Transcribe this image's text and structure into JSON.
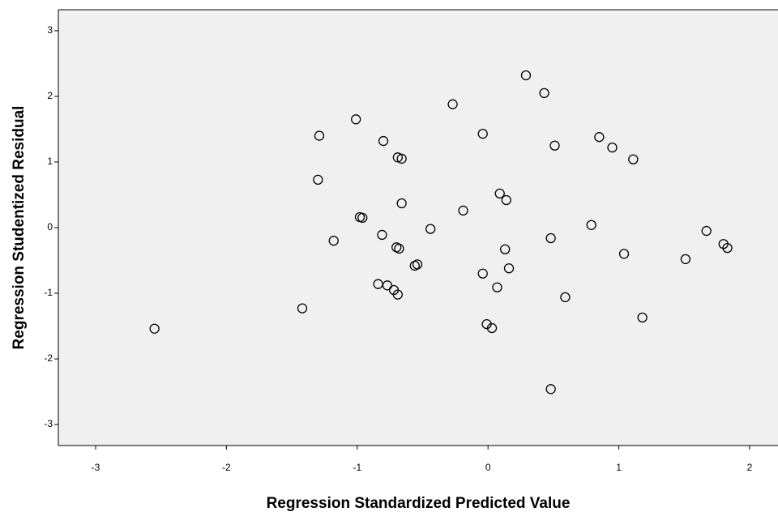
{
  "chart_data": {
    "type": "scatter",
    "xlabel": "Regression Standardized Predicted Value",
    "ylabel": "Regression Studentized Residual",
    "x": [
      -2.55,
      -1.42,
      -1.29,
      -1.3,
      -1.18,
      -1.01,
      -0.98,
      -0.96,
      -0.8,
      -0.81,
      -0.84,
      -0.77,
      -0.72,
      -0.69,
      -0.69,
      -0.66,
      -0.66,
      -0.7,
      -0.68,
      -0.56,
      -0.54,
      -0.44,
      -0.27,
      -0.19,
      -0.04,
      -0.04,
      -0.01,
      0.03,
      0.07,
      0.09,
      0.14,
      0.13,
      0.16,
      0.29,
      0.43,
      0.51,
      0.48,
      0.48,
      0.59,
      0.79,
      0.85,
      0.95,
      1.04,
      1.11,
      1.18,
      1.51,
      1.67,
      1.8,
      1.83
    ],
    "values": [
      -1.54,
      -1.23,
      1.4,
      0.73,
      -0.2,
      1.65,
      0.16,
      0.15,
      1.32,
      -0.11,
      -0.86,
      -0.88,
      -0.95,
      -1.02,
      1.07,
      1.05,
      0.37,
      -0.3,
      -0.32,
      -0.58,
      -0.56,
      -0.02,
      1.88,
      0.26,
      1.43,
      -0.7,
      -1.47,
      -1.53,
      -0.91,
      0.52,
      0.42,
      -0.33,
      -0.62,
      2.32,
      2.05,
      1.25,
      -0.16,
      -2.46,
      -1.06,
      0.04,
      1.38,
      1.22,
      -0.4,
      1.04,
      -1.37,
      -0.48,
      -0.05,
      -0.25,
      -0.31
    ],
    "color": "#000000",
    "xlim": [
      -3.285,
      2.217
    ],
    "xticks": [
      -3,
      -2,
      -1,
      0,
      1,
      2
    ],
    "ylim": [
      -3.32,
      3.32
    ],
    "yticks": [
      -3,
      -2,
      -1,
      0,
      1,
      2,
      3
    ]
  }
}
